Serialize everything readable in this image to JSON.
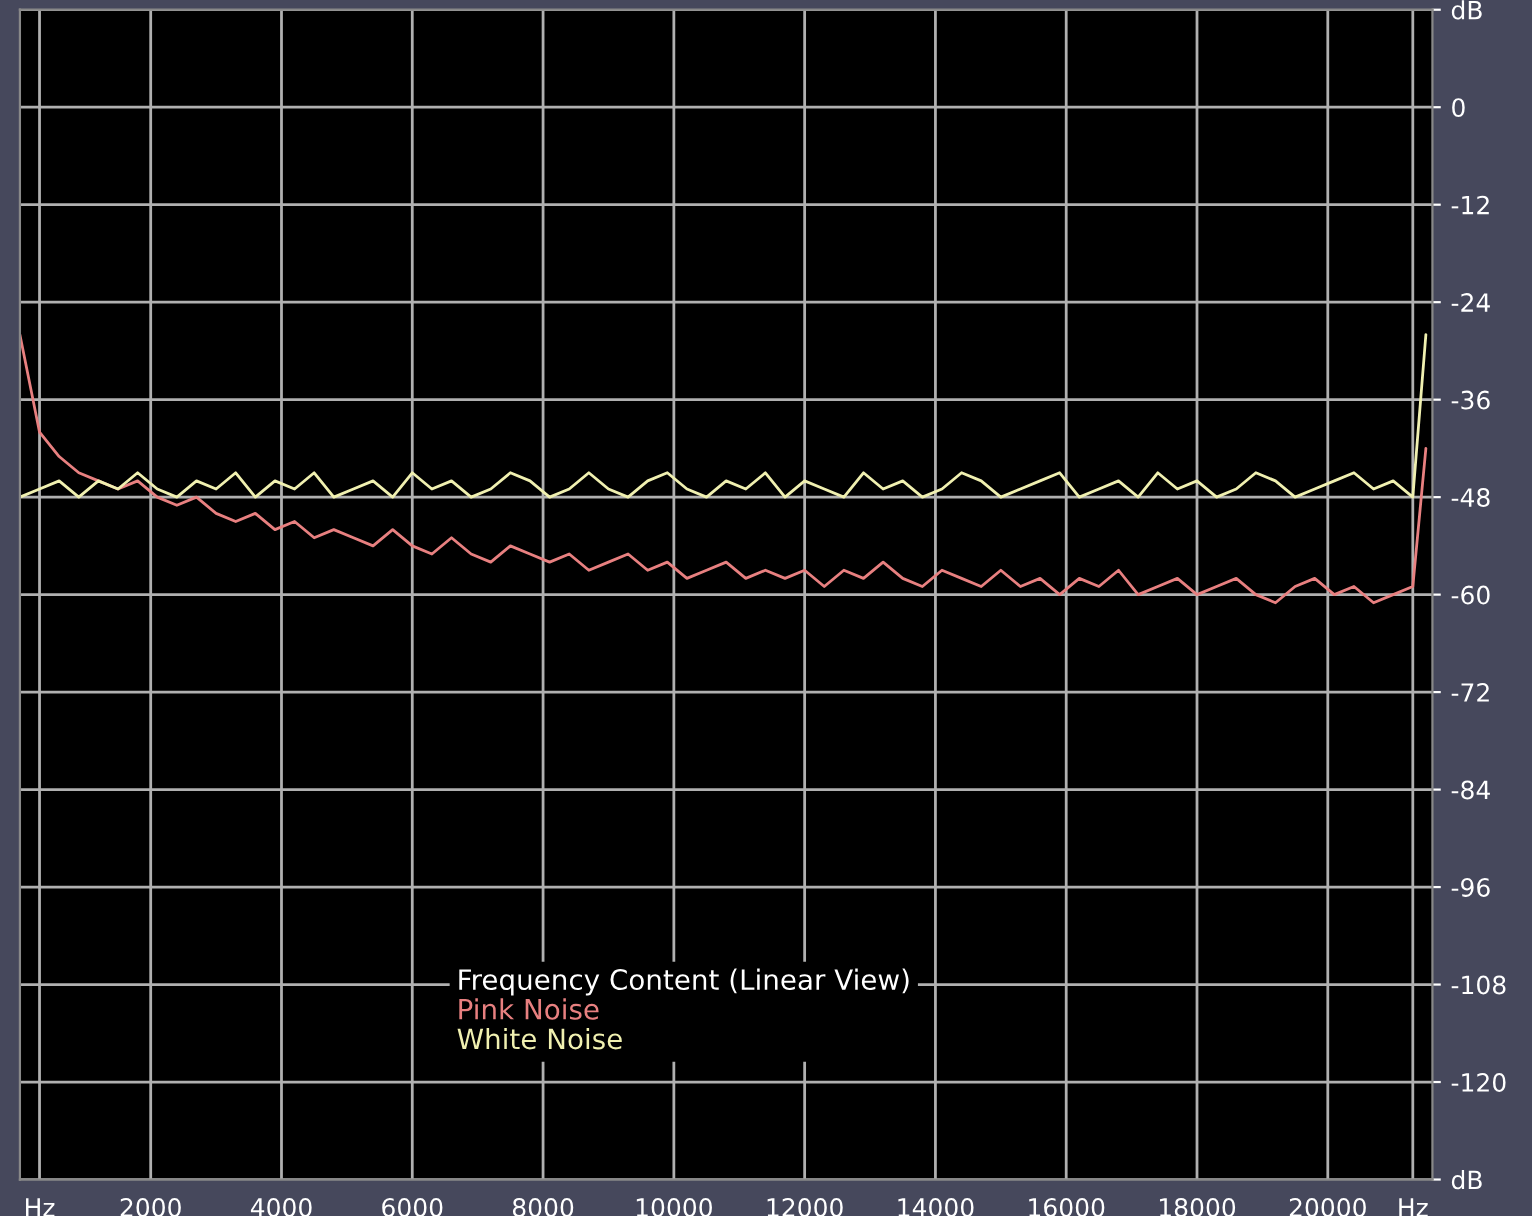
{
  "chart_data": {
    "type": "line",
    "legend_title": "Frequency Content (Linear View)",
    "x": [
      0,
      300,
      600,
      900,
      1200,
      1500,
      1800,
      2100,
      2400,
      2700,
      3000,
      3300,
      3600,
      3900,
      4200,
      4500,
      4800,
      5100,
      5400,
      5700,
      6000,
      6300,
      6600,
      6900,
      7200,
      7500,
      7800,
      8100,
      8400,
      8700,
      9000,
      9300,
      9600,
      9900,
      10200,
      10500,
      10800,
      11100,
      11400,
      11700,
      12000,
      12300,
      12600,
      12900,
      13200,
      13500,
      13800,
      14100,
      14400,
      14700,
      15000,
      15300,
      15600,
      15900,
      16200,
      16500,
      16800,
      17100,
      17400,
      17700,
      18000,
      18300,
      18600,
      18900,
      19200,
      19500,
      19800,
      20100,
      20400,
      20700,
      21000,
      21300,
      21500
    ],
    "series": [
      {
        "name": "Pink Noise",
        "color": "#e88080",
        "values": [
          -28,
          -40,
          -43,
          -45,
          -46,
          -47,
          -46,
          -48,
          -49,
          -48,
          -50,
          -51,
          -50,
          -52,
          -51,
          -53,
          -52,
          -53,
          -54,
          -52,
          -54,
          -55,
          -53,
          -55,
          -56,
          -54,
          -55,
          -56,
          -55,
          -57,
          -56,
          -55,
          -57,
          -56,
          -58,
          -57,
          -56,
          -58,
          -57,
          -58,
          -57,
          -59,
          -57,
          -58,
          -56,
          -58,
          -59,
          -57,
          -58,
          -59,
          -57,
          -59,
          -58,
          -60,
          -58,
          -59,
          -57,
          -60,
          -59,
          -58,
          -60,
          -59,
          -58,
          -60,
          -61,
          -59,
          -58,
          -60,
          -59,
          -61,
          -60,
          -59,
          -42
        ]
      },
      {
        "name": "White Noise",
        "color": "#f0f0b0",
        "values": [
          -48,
          -47,
          -46,
          -48,
          -46,
          -47,
          -45,
          -47,
          -48,
          -46,
          -47,
          -45,
          -48,
          -46,
          -47,
          -45,
          -48,
          -47,
          -46,
          -48,
          -45,
          -47,
          -46,
          -48,
          -47,
          -45,
          -46,
          -48,
          -47,
          -45,
          -47,
          -48,
          -46,
          -45,
          -47,
          -48,
          -46,
          -47,
          -45,
          -48,
          -46,
          -47,
          -48,
          -45,
          -47,
          -46,
          -48,
          -47,
          -45,
          -46,
          -48,
          -47,
          -46,
          -45,
          -48,
          -47,
          -46,
          -48,
          -45,
          -47,
          -46,
          -48,
          -47,
          -45,
          -46,
          -48,
          -47,
          -46,
          -45,
          -47,
          -46,
          -48,
          -28
        ]
      }
    ],
    "xlim": [
      0,
      21600
    ],
    "xticks": [
      {
        "value": 300,
        "label": "Hz"
      },
      2000,
      4000,
      6000,
      8000,
      10000,
      12000,
      14000,
      16000,
      18000,
      20000,
      {
        "value": 21300,
        "label": "Hz"
      }
    ],
    "ylim": [
      -132,
      12
    ],
    "yticks": [
      {
        "value": 12,
        "label": "dB"
      },
      0,
      -12,
      -24,
      -36,
      -48,
      -60,
      -72,
      -84,
      -96,
      -108,
      -120,
      {
        "value": -132,
        "label": "dB"
      }
    ],
    "grid": true,
    "legend": "bottom",
    "marker": "none",
    "line_style": "solid"
  }
}
